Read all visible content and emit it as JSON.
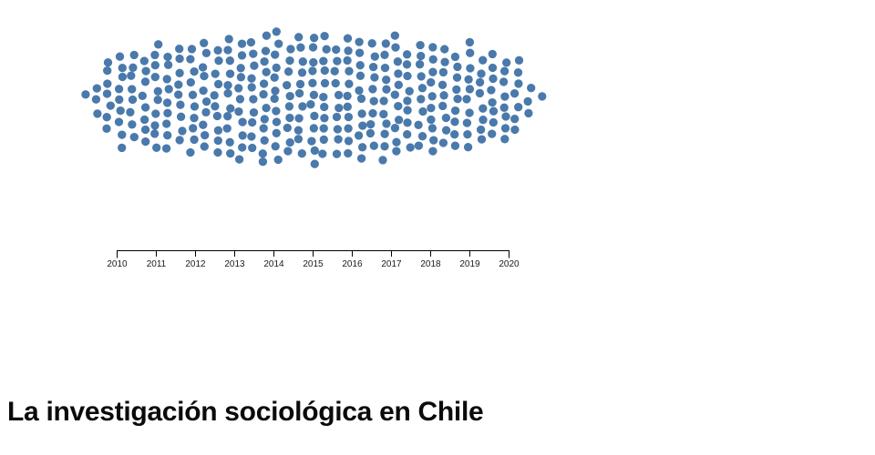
{
  "page": {
    "background": "#ffffff"
  },
  "title": {
    "text": "La investigación sociológica en Chile"
  },
  "chart_data": {
    "type": "beeswarm",
    "title": "La investigación sociológica en Chile",
    "xlabel": "",
    "ylabel": "",
    "categories": [
      "2010",
      "2011",
      "2012",
      "2013",
      "2014",
      "2015",
      "2016",
      "2017",
      "2018",
      "2019",
      "2020"
    ],
    "values": [
      26,
      29,
      32,
      35,
      37,
      36,
      35,
      34,
      32,
      29,
      25
    ],
    "total_dots": 350,
    "values_estimated": true,
    "dot_color": "#4a79ab",
    "axis_color": "#000000",
    "tick_label_color": "#1a1a1a",
    "legend": "none",
    "grid": "off"
  }
}
